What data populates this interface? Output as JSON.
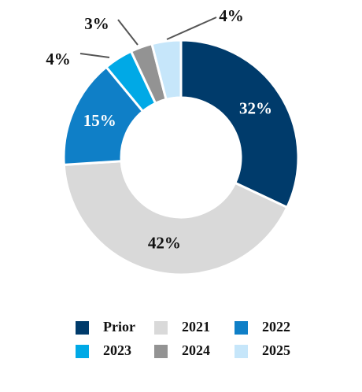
{
  "chart_data": {
    "type": "pie",
    "donut": true,
    "categories": [
      "Prior",
      "2021",
      "2022",
      "2023",
      "2024",
      "2025"
    ],
    "values": [
      32,
      42,
      15,
      4,
      3,
      4
    ],
    "data_labels": [
      "32%",
      "42%",
      "15%",
      "4%",
      "3%",
      "4%"
    ],
    "colors": [
      "#003B6B",
      "#D9D9D9",
      "#0F7FC7",
      "#00A9E6",
      "#939393",
      "#C6E6FA"
    ],
    "label_colors": [
      "#ffffff",
      "#111111",
      "#ffffff",
      "#111111",
      "#111111",
      "#111111"
    ],
    "legend_position": "bottom",
    "title": ""
  }
}
